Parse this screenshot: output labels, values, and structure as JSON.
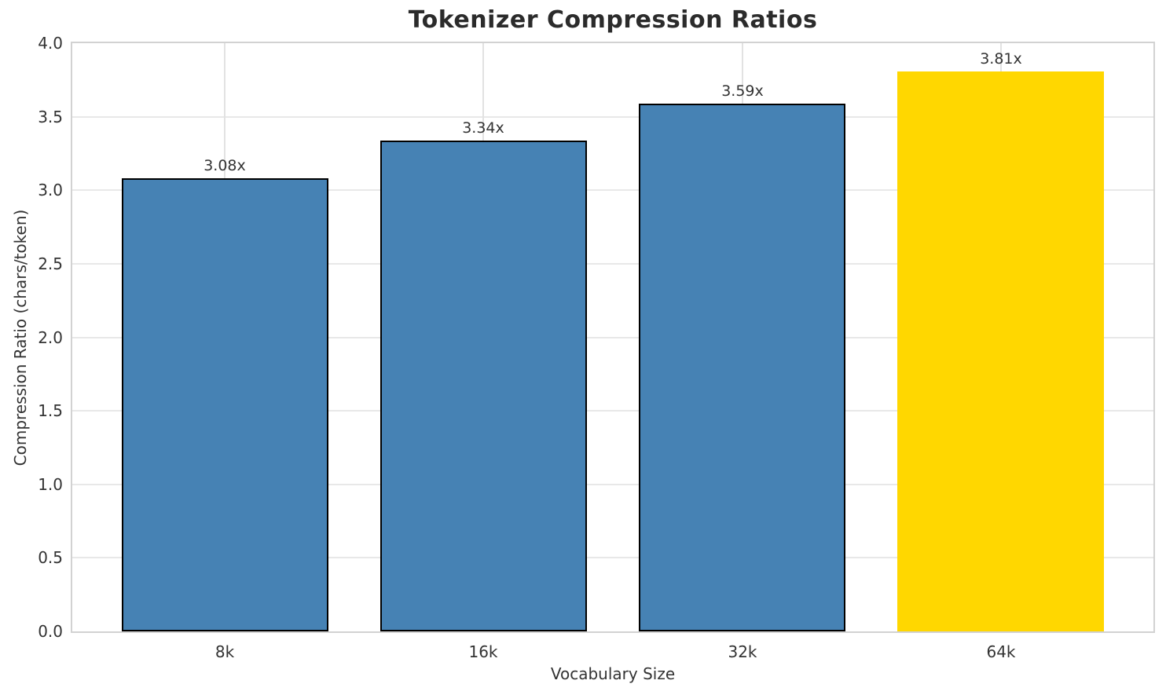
{
  "chart_data": {
    "type": "bar",
    "title": "Tokenizer Compression Ratios",
    "xlabel": "Vocabulary Size",
    "ylabel": "Compression Ratio (chars/token)",
    "categories": [
      "8k",
      "16k",
      "32k",
      "64k"
    ],
    "values": [
      3.08,
      3.34,
      3.59,
      3.81
    ],
    "bar_labels": [
      "3.08x",
      "3.34x",
      "3.59x",
      "3.81x"
    ],
    "ylim": [
      0,
      4
    ],
    "ytick_labels": [
      "0.0",
      "0.5",
      "1.0",
      "1.5",
      "2.0",
      "2.5",
      "3.0",
      "3.5",
      "4.0"
    ],
    "ytick_values": [
      0,
      0.5,
      1,
      1.5,
      2,
      2.5,
      3,
      3.5,
      4
    ],
    "grid": "horizontal-and-vertical",
    "legend_position": "none",
    "bar_colors": [
      "#4682B4",
      "#4682B4",
      "#4682B4",
      "#FFD700"
    ],
    "bar_edge_colors": [
      "#000000",
      "#000000",
      "#000000",
      "none"
    ],
    "colors": {
      "bar_default": "#4682B4",
      "bar_highlight": "#FFD700",
      "bar_edge": "#000000",
      "gridline": "#e8e8e8",
      "spine": "#d2d2d2",
      "tick_text": "#333333",
      "title_text": "#2b2b2b"
    }
  }
}
